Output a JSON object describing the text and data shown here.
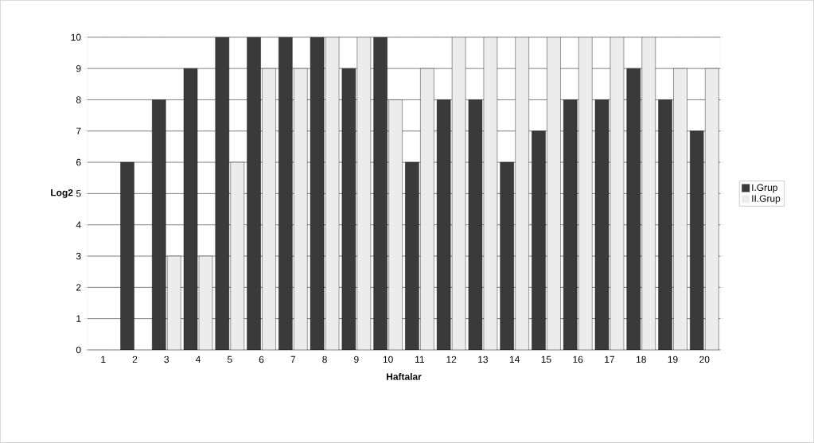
{
  "chart_data": {
    "type": "bar",
    "xlabel": "Haftalar",
    "ylabel": "Log2",
    "categories": [
      "1",
      "2",
      "3",
      "4",
      "5",
      "6",
      "7",
      "8",
      "9",
      "10",
      "11",
      "12",
      "13",
      "14",
      "15",
      "16",
      "17",
      "18",
      "19",
      "20"
    ],
    "series": [
      {
        "name": "I.Grup",
        "color": "#3a3a3a",
        "values": [
          null,
          6,
          8,
          9,
          10,
          10,
          10,
          10,
          9,
          10,
          6,
          8,
          8,
          6,
          7,
          8,
          8,
          9,
          8,
          7
        ]
      },
      {
        "name": "II.Grup",
        "color": "#ececec",
        "values": [
          null,
          null,
          3,
          3,
          6,
          9,
          9,
          10,
          10,
          8,
          9,
          10,
          10,
          10,
          10,
          10,
          10,
          10,
          9,
          9
        ]
      }
    ],
    "ylim": [
      0,
      10
    ],
    "yticks": [
      0,
      1,
      2,
      3,
      4,
      5,
      6,
      7,
      8,
      9,
      10
    ],
    "grid": "y",
    "legend": "right"
  }
}
